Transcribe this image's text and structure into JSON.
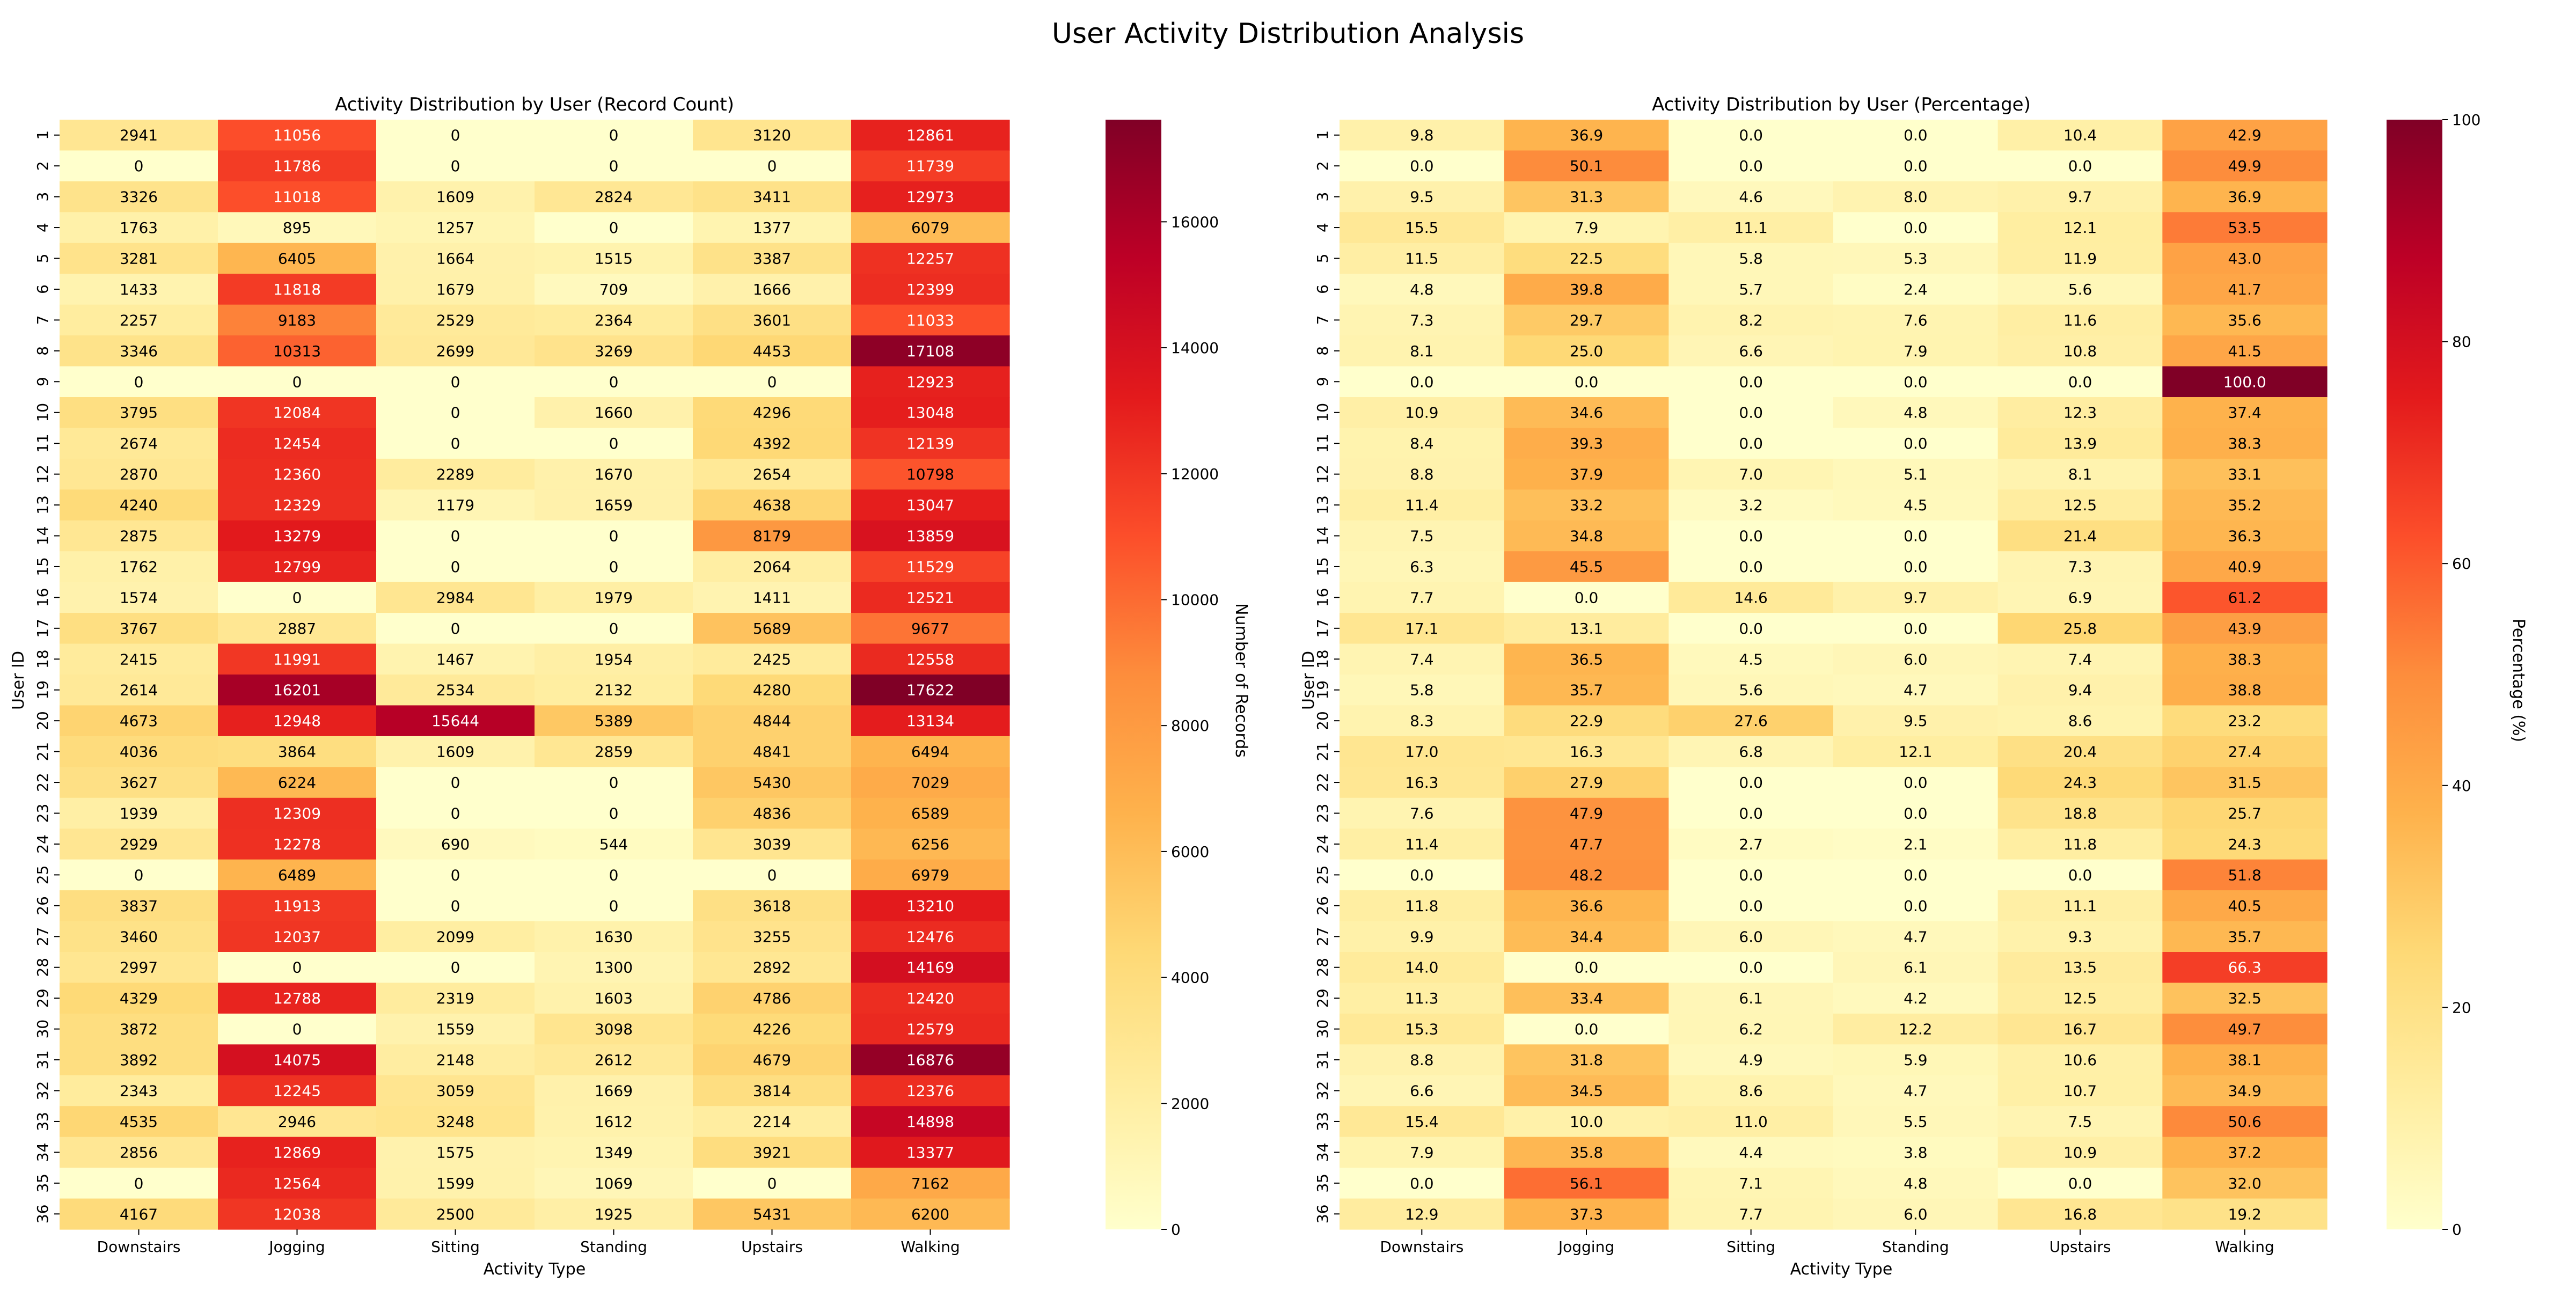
{
  "figure_title": "User Activity Distribution Analysis",
  "colormap": "YlOrRd",
  "colormap_stops": [
    "#ffffcc",
    "#ffeda0",
    "#fed976",
    "#feb24c",
    "#fd8d3c",
    "#fc4e2a",
    "#e31a1c",
    "#bd0026",
    "#800026"
  ],
  "chart_data": [
    {
      "type": "heatmap",
      "title": "Activity Distribution by User (Record Count)",
      "xlabel": "Activity Type",
      "ylabel": "User ID",
      "x_categories": [
        "Downstairs",
        "Jogging",
        "Sitting",
        "Standing",
        "Upstairs",
        "Walking"
      ],
      "y_categories": [
        "1",
        "2",
        "3",
        "4",
        "5",
        "6",
        "7",
        "8",
        "9",
        "10",
        "11",
        "12",
        "13",
        "14",
        "15",
        "16",
        "17",
        "18",
        "19",
        "20",
        "21",
        "22",
        "23",
        "24",
        "25",
        "26",
        "27",
        "28",
        "29",
        "30",
        "31",
        "32",
        "33",
        "34",
        "35",
        "36"
      ],
      "values": [
        [
          2941,
          11056,
          0,
          0,
          3120,
          12861
        ],
        [
          0,
          11786,
          0,
          0,
          0,
          11739
        ],
        [
          3326,
          11018,
          1609,
          2824,
          3411,
          12973
        ],
        [
          1763,
          895,
          1257,
          0,
          1377,
          6079
        ],
        [
          3281,
          6405,
          1664,
          1515,
          3387,
          12257
        ],
        [
          1433,
          11818,
          1679,
          709,
          1666,
          12399
        ],
        [
          2257,
          9183,
          2529,
          2364,
          3601,
          11033
        ],
        [
          3346,
          10313,
          2699,
          3269,
          4453,
          17108
        ],
        [
          0,
          0,
          0,
          0,
          0,
          12923
        ],
        [
          3795,
          12084,
          0,
          1660,
          4296,
          13048
        ],
        [
          2674,
          12454,
          0,
          0,
          4392,
          12139
        ],
        [
          2870,
          12360,
          2289,
          1670,
          2654,
          10798
        ],
        [
          4240,
          12329,
          1179,
          1659,
          4638,
          13047
        ],
        [
          2875,
          13279,
          0,
          0,
          8179,
          13859
        ],
        [
          1762,
          12799,
          0,
          0,
          2064,
          11529
        ],
        [
          1574,
          0,
          2984,
          1979,
          1411,
          12521
        ],
        [
          3767,
          2887,
          0,
          0,
          5689,
          9677
        ],
        [
          2415,
          11991,
          1467,
          1954,
          2425,
          12558
        ],
        [
          2614,
          16201,
          2534,
          2132,
          4280,
          17622
        ],
        [
          4673,
          12948,
          15644,
          5389,
          4844,
          13134
        ],
        [
          4036,
          3864,
          1609,
          2859,
          4841,
          6494
        ],
        [
          3627,
          6224,
          0,
          0,
          5430,
          7029
        ],
        [
          1939,
          12309,
          0,
          0,
          4836,
          6589
        ],
        [
          2929,
          12278,
          690,
          544,
          3039,
          6256
        ],
        [
          0,
          6489,
          0,
          0,
          0,
          6979
        ],
        [
          3837,
          11913,
          0,
          0,
          3618,
          13210
        ],
        [
          3460,
          12037,
          2099,
          1630,
          3255,
          12476
        ],
        [
          2997,
          0,
          0,
          1300,
          2892,
          14169
        ],
        [
          4329,
          12788,
          2319,
          1603,
          4786,
          12420
        ],
        [
          3872,
          0,
          1559,
          3098,
          4226,
          12579
        ],
        [
          3892,
          14075,
          2148,
          2612,
          4679,
          16876
        ],
        [
          2343,
          12245,
          3059,
          1669,
          3814,
          12376
        ],
        [
          4535,
          2946,
          3248,
          1612,
          2214,
          14898
        ],
        [
          2856,
          12869,
          1575,
          1349,
          3921,
          13377
        ],
        [
          0,
          12564,
          1599,
          1069,
          0,
          7162
        ],
        [
          4167,
          12038,
          2500,
          1925,
          5431,
          6200
        ]
      ],
      "value_format": "int",
      "colorbar_label": "Number of Records",
      "vmin": 0,
      "vmax": 17622,
      "colorbar_ticks": [
        "0",
        "2000",
        "4000",
        "6000",
        "8000",
        "10000",
        "12000",
        "14000",
        "16000"
      ]
    },
    {
      "type": "heatmap",
      "title": "Activity Distribution by User (Percentage)",
      "xlabel": "Activity Type",
      "ylabel": "User ID",
      "x_categories": [
        "Downstairs",
        "Jogging",
        "Sitting",
        "Standing",
        "Upstairs",
        "Walking"
      ],
      "y_categories": [
        "1",
        "2",
        "3",
        "4",
        "5",
        "6",
        "7",
        "8",
        "9",
        "10",
        "11",
        "12",
        "13",
        "14",
        "15",
        "16",
        "17",
        "18",
        "19",
        "20",
        "21",
        "22",
        "23",
        "24",
        "25",
        "26",
        "27",
        "28",
        "29",
        "30",
        "31",
        "32",
        "33",
        "34",
        "35",
        "36"
      ],
      "values": [
        [
          9.8,
          36.9,
          0.0,
          0.0,
          10.4,
          42.9
        ],
        [
          0.0,
          50.1,
          0.0,
          0.0,
          0.0,
          49.9
        ],
        [
          9.5,
          31.3,
          4.6,
          8.0,
          9.7,
          36.9
        ],
        [
          15.5,
          7.9,
          11.1,
          0.0,
          12.1,
          53.5
        ],
        [
          11.5,
          22.5,
          5.8,
          5.3,
          11.9,
          43.0
        ],
        [
          4.8,
          39.8,
          5.7,
          2.4,
          5.6,
          41.7
        ],
        [
          7.3,
          29.7,
          8.2,
          7.6,
          11.6,
          35.6
        ],
        [
          8.1,
          25.0,
          6.6,
          7.9,
          10.8,
          41.5
        ],
        [
          0.0,
          0.0,
          0.0,
          0.0,
          0.0,
          100.0
        ],
        [
          10.9,
          34.6,
          0.0,
          4.8,
          12.3,
          37.4
        ],
        [
          8.4,
          39.3,
          0.0,
          0.0,
          13.9,
          38.3
        ],
        [
          8.8,
          37.9,
          7.0,
          5.1,
          8.1,
          33.1
        ],
        [
          11.4,
          33.2,
          3.2,
          4.5,
          12.5,
          35.2
        ],
        [
          7.5,
          34.8,
          0.0,
          0.0,
          21.4,
          36.3
        ],
        [
          6.3,
          45.5,
          0.0,
          0.0,
          7.3,
          40.9
        ],
        [
          7.7,
          0.0,
          14.6,
          9.7,
          6.9,
          61.2
        ],
        [
          17.1,
          13.1,
          0.0,
          0.0,
          25.8,
          43.9
        ],
        [
          7.4,
          36.5,
          4.5,
          6.0,
          7.4,
          38.3
        ],
        [
          5.8,
          35.7,
          5.6,
          4.7,
          9.4,
          38.8
        ],
        [
          8.3,
          22.9,
          27.6,
          9.5,
          8.6,
          23.2
        ],
        [
          17.0,
          16.3,
          6.8,
          12.1,
          20.4,
          27.4
        ],
        [
          16.3,
          27.9,
          0.0,
          0.0,
          24.3,
          31.5
        ],
        [
          7.6,
          47.9,
          0.0,
          0.0,
          18.8,
          25.7
        ],
        [
          11.4,
          47.7,
          2.7,
          2.1,
          11.8,
          24.3
        ],
        [
          0.0,
          48.2,
          0.0,
          0.0,
          0.0,
          51.8
        ],
        [
          11.8,
          36.6,
          0.0,
          0.0,
          11.1,
          40.5
        ],
        [
          9.9,
          34.4,
          6.0,
          4.7,
          9.3,
          35.7
        ],
        [
          14.0,
          0.0,
          0.0,
          6.1,
          13.5,
          66.3
        ],
        [
          11.3,
          33.4,
          6.1,
          4.2,
          12.5,
          32.5
        ],
        [
          15.3,
          0.0,
          6.2,
          12.2,
          16.7,
          49.7
        ],
        [
          8.8,
          31.8,
          4.9,
          5.9,
          10.6,
          38.1
        ],
        [
          6.6,
          34.5,
          8.6,
          4.7,
          10.7,
          34.9
        ],
        [
          15.4,
          10.0,
          11.0,
          5.5,
          7.5,
          50.6
        ],
        [
          7.9,
          35.8,
          4.4,
          3.8,
          10.9,
          37.2
        ],
        [
          0.0,
          56.1,
          7.1,
          4.8,
          0.0,
          32.0
        ],
        [
          12.9,
          37.3,
          7.7,
          6.0,
          16.8,
          19.2
        ]
      ],
      "value_format": "fixed1",
      "colorbar_label": "Percentage (%)",
      "vmin": 0,
      "vmax": 100,
      "colorbar_ticks": [
        "0",
        "20",
        "40",
        "60",
        "80",
        "100"
      ]
    }
  ]
}
